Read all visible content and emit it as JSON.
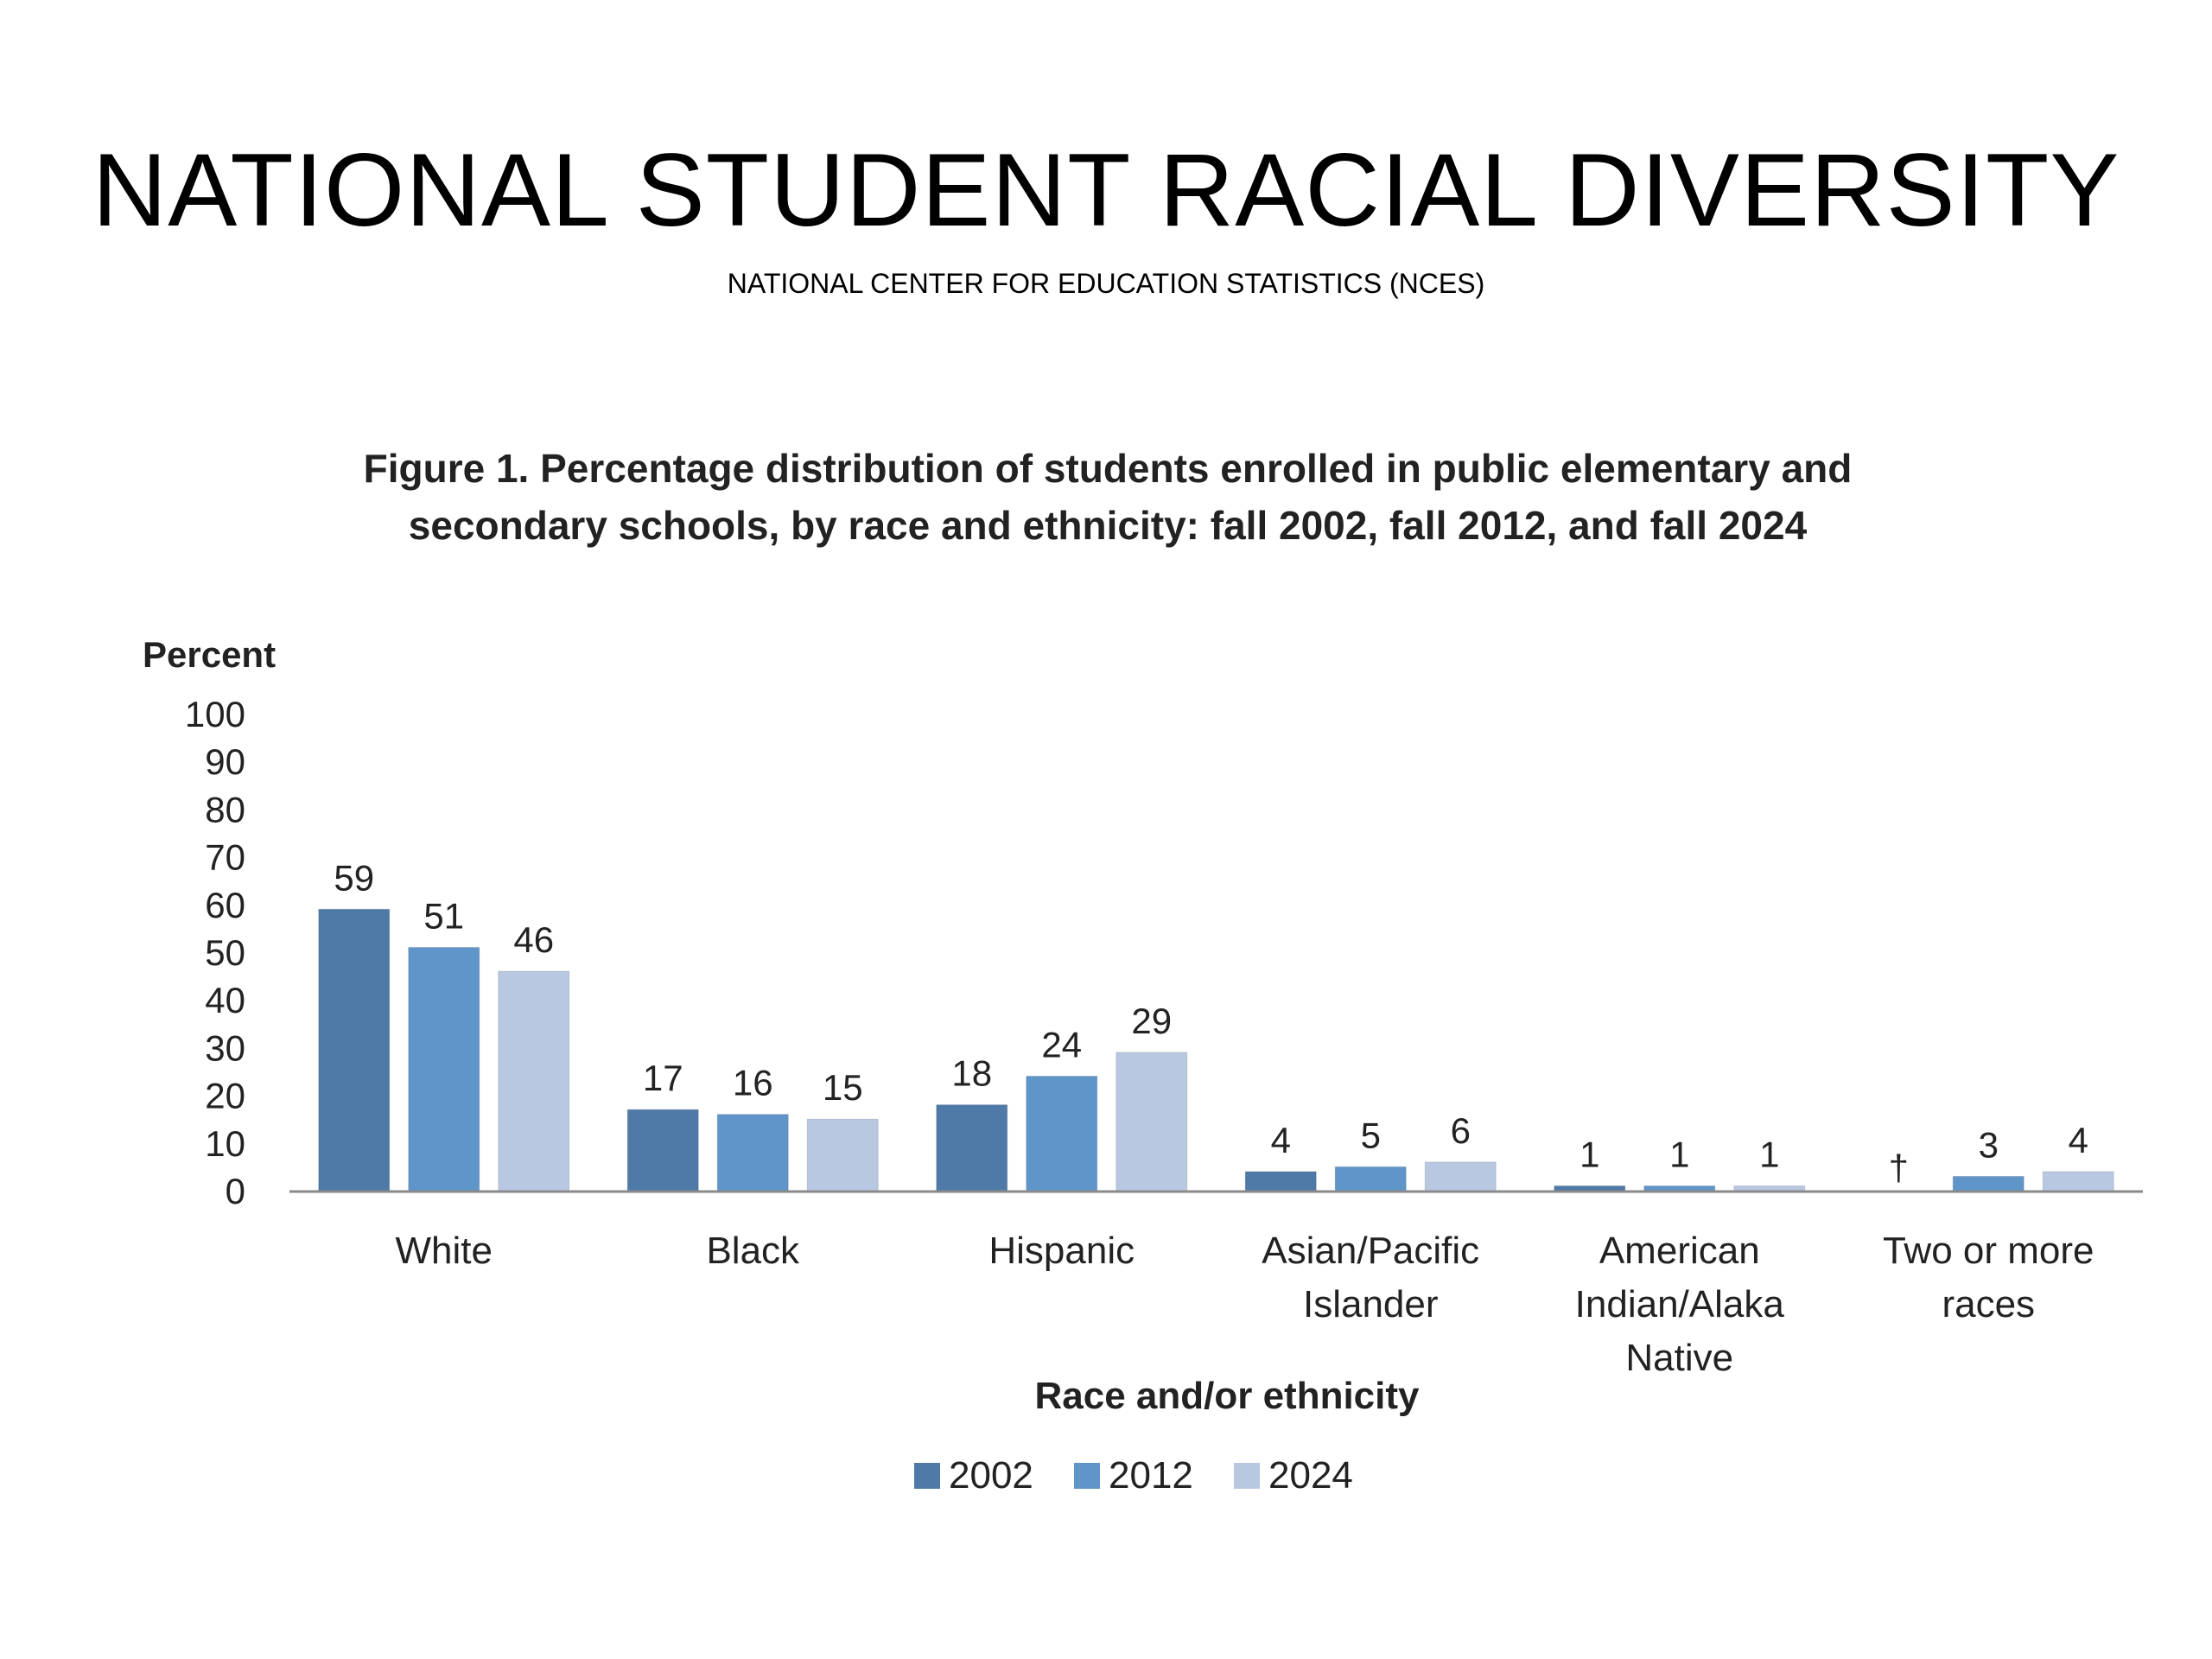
{
  "slide": {
    "title": "NATIONAL STUDENT RACIAL DIVERSITY",
    "subtitle": "NATIONAL CENTER FOR EDUCATION STATISTICS (NCES)"
  },
  "chart_data": {
    "type": "bar",
    "title": [
      "Figure 1. Percentage distribution of students enrolled in public elementary and",
      "secondary schools, by race and ethnicity: fall 2002, fall 2012, and fall 2024"
    ],
    "ylabel": "Percent",
    "xlabel": "Race and/or ethnicity",
    "ylim": [
      0,
      100
    ],
    "yticks": [
      0,
      10,
      20,
      30,
      40,
      50,
      60,
      70,
      80,
      90,
      100
    ],
    "grid": false,
    "legend_position": "bottom",
    "categories": [
      [
        "White"
      ],
      [
        "Black"
      ],
      [
        "Hispanic"
      ],
      [
        "Asian/Pacific",
        "Islander"
      ],
      [
        "American",
        "Indian/Alaka",
        "Native"
      ],
      [
        "Two or more",
        "races"
      ]
    ],
    "series": [
      {
        "name": "2002",
        "color": "#4f7aa8",
        "values": [
          59,
          17,
          18,
          4,
          1,
          null
        ],
        "labels": [
          "59",
          "17",
          "18",
          "4",
          "1",
          "†"
        ]
      },
      {
        "name": "2012",
        "color": "#5f95c9",
        "values": [
          51,
          16,
          24,
          5,
          1,
          3
        ],
        "labels": [
          "51",
          "16",
          "24",
          "5",
          "1",
          "3"
        ]
      },
      {
        "name": "2024",
        "color": "#b8c8e1",
        "values": [
          46,
          15,
          29,
          6,
          1,
          4
        ],
        "labels": [
          "46",
          "15",
          "29",
          "6",
          "1",
          "4"
        ]
      }
    ]
  }
}
